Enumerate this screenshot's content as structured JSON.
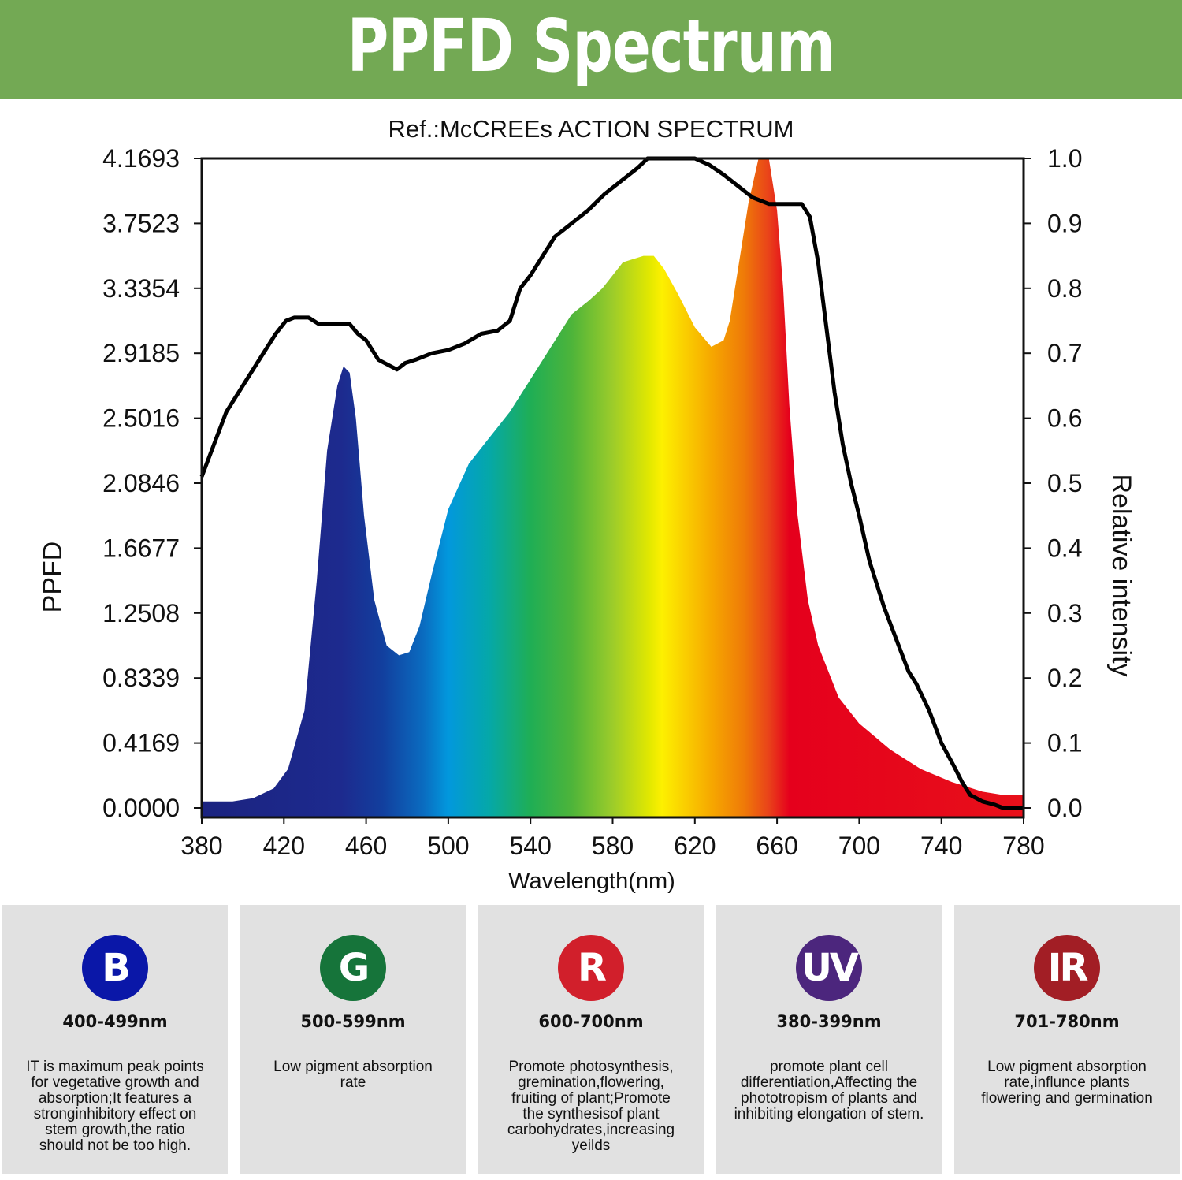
{
  "header": {
    "title": "PPFD Spectrum",
    "background": "#73a954"
  },
  "chart_data": {
    "type": "area",
    "title": "Ref.:McCREEs ACTION SPECTRUM",
    "xlabel": "Wavelength(nm)",
    "ylabel_left": "PPFD",
    "ylabel_right": "Relative intensity",
    "xlim": [
      380,
      780
    ],
    "ylim": [
      0,
      1.0
    ],
    "x_ticks": [
      "380",
      "420",
      "460",
      "500",
      "540",
      "580",
      "620",
      "660",
      "700",
      "740",
      "780"
    ],
    "y_left_ticks": [
      "0.0000",
      "0.4169",
      "0.8339",
      "1.2508",
      "1.6677",
      "2.0846",
      "2.5016",
      "2.9185",
      "3.3354",
      "3.7523",
      "4.1693"
    ],
    "y_right_ticks": [
      "0.0",
      "0.1",
      "0.2",
      "0.3",
      "0.4",
      "0.5",
      "0.6",
      "0.7",
      "0.8",
      "0.9",
      "1.0"
    ],
    "grid": false,
    "series": [
      {
        "role": "lamp spectrum (rainbow filled area)",
        "x": [
          380,
          395,
          405,
          415,
          422,
          430,
          436,
          441,
          446,
          449,
          452,
          455,
          459,
          464,
          470,
          476,
          481,
          486,
          492,
          500,
          510,
          520,
          530,
          540,
          550,
          560,
          568,
          575,
          585,
          595,
          600,
          605,
          612,
          620,
          628,
          634,
          637,
          641,
          646,
          651,
          656,
          660,
          663,
          666,
          670,
          675,
          680,
          690,
          700,
          715,
          730,
          745,
          760,
          770,
          780
        ],
        "y": [
          0.01,
          0.01,
          0.015,
          0.03,
          0.06,
          0.15,
          0.35,
          0.55,
          0.65,
          0.68,
          0.67,
          0.6,
          0.45,
          0.32,
          0.25,
          0.235,
          0.24,
          0.28,
          0.36,
          0.46,
          0.53,
          0.57,
          0.61,
          0.66,
          0.71,
          0.76,
          0.78,
          0.8,
          0.84,
          0.85,
          0.85,
          0.83,
          0.79,
          0.74,
          0.71,
          0.72,
          0.75,
          0.83,
          0.93,
          1.0,
          1.0,
          0.92,
          0.8,
          0.62,
          0.45,
          0.32,
          0.25,
          0.17,
          0.13,
          0.09,
          0.06,
          0.04,
          0.025,
          0.02,
          0.02
        ]
      },
      {
        "role": "McCree action spectrum (black line)",
        "x": [
          380,
          386,
          392,
          400,
          408,
          416,
          421,
          425,
          432,
          437,
          444,
          452,
          456,
          460,
          466,
          472,
          475,
          479,
          484,
          492,
          500,
          508,
          516,
          524,
          530,
          535,
          540,
          546,
          552,
          560,
          568,
          576,
          584,
          592,
          597,
          604,
          612,
          620,
          627,
          634,
          642,
          648,
          656,
          664,
          672,
          676,
          680,
          684,
          688,
          692,
          696,
          700,
          705,
          712,
          718,
          724,
          728,
          734,
          740,
          746,
          750,
          754,
          760,
          766,
          770,
          774,
          780
        ],
        "y": [
          0.51,
          0.56,
          0.61,
          0.65,
          0.69,
          0.73,
          0.75,
          0.755,
          0.755,
          0.745,
          0.745,
          0.745,
          0.73,
          0.72,
          0.69,
          0.68,
          0.675,
          0.685,
          0.69,
          0.7,
          0.705,
          0.715,
          0.73,
          0.735,
          0.75,
          0.8,
          0.82,
          0.85,
          0.88,
          0.9,
          0.92,
          0.945,
          0.965,
          0.985,
          1.0,
          1.0,
          1.0,
          1.0,
          0.99,
          0.975,
          0.955,
          0.94,
          0.93,
          0.93,
          0.93,
          0.91,
          0.84,
          0.74,
          0.64,
          0.56,
          0.5,
          0.45,
          0.38,
          0.31,
          0.26,
          0.21,
          0.19,
          0.15,
          0.1,
          0.065,
          0.04,
          0.02,
          0.01,
          0.005,
          0.0,
          0.0,
          0.0
        ]
      }
    ]
  },
  "cards": [
    {
      "letter": "B",
      "color": "#0a17a8",
      "range": "400-499nm",
      "lines": [
        "IT is maximum peak points",
        "for vegetative growth and",
        "absorption;It features a",
        "stronginhibitory effect on",
        "stem growth,the ratio",
        "should not be too high."
      ]
    },
    {
      "letter": "G",
      "color": "#16743a",
      "range": "500-599nm",
      "lines": [
        "Low pigment absorption",
        "rate"
      ]
    },
    {
      "letter": "R",
      "color": "#d11f2b",
      "range": "600-700nm",
      "lines": [
        "Promote photosynthesis,",
        "gremination,flowering,",
        "fruiting of plant;Promote",
        "the synthesisof plant",
        "carbohydrates,increasing",
        "yeilds"
      ]
    },
    {
      "letter": "UV",
      "color": "#4c267d",
      "range": "380-399nm",
      "lines": [
        "promote plant cell",
        "differentiation,Affecting the",
        "phototropism of plants and",
        "inhibiting elongation of stem."
      ]
    },
    {
      "letter": "IR",
      "color": "#a21e25",
      "range": "701-780nm",
      "lines": [
        "Low pigment absorption",
        "rate,influnce plants",
        "flowering and germination"
      ]
    }
  ]
}
